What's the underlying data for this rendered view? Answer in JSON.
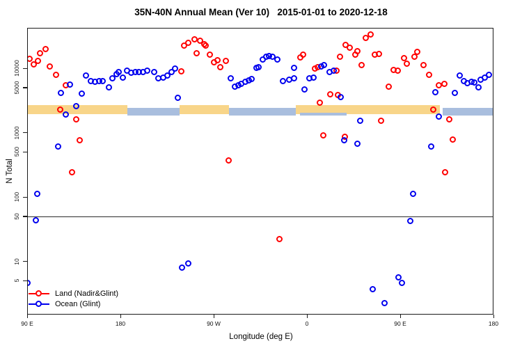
{
  "title": "35N-40N Annual Mean (Ver 10)   2015-01-01 to 2020-12-18",
  "legend": {
    "items": [
      {
        "label": "Land (Nadir&Glint)",
        "color": "#ff0000"
      },
      {
        "label": "Ocean (Glint)",
        "color": "#0000ee"
      }
    ]
  },
  "colors": {
    "land": "#ff0000",
    "ocean": "#0000ee",
    "land_band": "#f8d589",
    "ocean_band": "#a9bede",
    "axis": "#1a1a1a"
  },
  "chart_data": {
    "type": "scatter",
    "title": "35N-40N Annual Mean (Ver 10)   2015-01-01 to 2020-12-18",
    "xlabel": "Longitude (deg E)",
    "ylabel": "N Total",
    "x_axis": {
      "note": "axis runs eastward from 90E, wrapping past the dateline back to 180 (450 deg span)",
      "ticks_deg": [
        90,
        180,
        270,
        360,
        450,
        540
      ],
      "tick_labels": [
        "90 E",
        "180",
        "90 W",
        "0",
        "90 E",
        "180"
      ],
      "range_deg": [
        90,
        540
      ]
    },
    "y_axis": {
      "scale": "log",
      "ticks": [
        10000,
        5000,
        1000,
        500,
        100,
        50,
        10,
        5
      ],
      "range": [
        1.5,
        42000
      ],
      "grid": false
    },
    "reference_line_n": 50,
    "bands": [
      {
        "name": "land-mean-band",
        "color": "#f8d589",
        "n_range": [
          1950,
          2650
        ],
        "segments_deg": [
          [
            90,
            187
          ],
          [
            237,
            285
          ],
          [
            349,
            488
          ]
        ]
      },
      {
        "name": "ocean-mean-band",
        "color": "#a9bede",
        "n_range": [
          1820,
          2420
        ],
        "segments_deg": [
          [
            187,
            237
          ],
          [
            285,
            349
          ],
          [
            491,
            540
          ]
        ]
      },
      {
        "name": "ocean-mean-band-specks",
        "color": "#a9bede",
        "n_range": [
          1820,
          2050
        ],
        "segments_deg": [
          [
            353,
            398
          ]
        ]
      }
    ],
    "legend_position": "bottom-left",
    "series": [
      {
        "name": "Land (Nadir&Glint)",
        "color": "#ff0000",
        "points": [
          [
            93,
            13800
          ],
          [
            97,
            11300
          ],
          [
            101,
            12800
          ],
          [
            103,
            16900
          ],
          [
            108,
            19600
          ],
          [
            112,
            10500
          ],
          [
            118,
            7800
          ],
          [
            128,
            5400
          ],
          [
            122,
            2250
          ],
          [
            138,
            1580
          ],
          [
            141,
            750
          ],
          [
            134,
            240
          ],
          [
            239,
            8800
          ],
          [
            242,
            22200
          ],
          [
            246,
            24500
          ],
          [
            252,
            27700
          ],
          [
            254,
            16900
          ],
          [
            257,
            26400
          ],
          [
            261,
            23300
          ],
          [
            263,
            22200
          ],
          [
            267,
            16000
          ],
          [
            271,
            12200
          ],
          [
            274,
            13200
          ],
          [
            277,
            10300
          ],
          [
            282,
            12800
          ],
          [
            285,
            360
          ],
          [
            334,
            22
          ],
          [
            354,
            14500
          ],
          [
            357,
            16000
          ],
          [
            368,
            9800
          ],
          [
            371,
            10300
          ],
          [
            373,
            2900
          ],
          [
            376,
            890
          ],
          [
            383,
            3900
          ],
          [
            389,
            9050
          ],
          [
            390,
            3800
          ],
          [
            392,
            14900
          ],
          [
            397,
            850
          ],
          [
            398,
            22700
          ],
          [
            402,
            20600
          ],
          [
            407,
            16000
          ],
          [
            409,
            18200
          ],
          [
            413,
            11000
          ],
          [
            417,
            29200
          ],
          [
            422,
            33000
          ],
          [
            426,
            16000
          ],
          [
            430,
            16400
          ],
          [
            432,
            1510
          ],
          [
            439,
            5100
          ],
          [
            444,
            9300
          ],
          [
            448,
            9050
          ],
          [
            454,
            14200
          ],
          [
            457,
            11600
          ],
          [
            464,
            14900
          ],
          [
            467,
            17700
          ],
          [
            473,
            11000
          ],
          [
            478,
            7800
          ],
          [
            482,
            2250
          ],
          [
            488,
            5400
          ],
          [
            493,
            5600
          ],
          [
            494,
            240
          ],
          [
            498,
            1580
          ],
          [
            501,
            770
          ]
        ]
      },
      {
        "name": "Ocean (Glint)",
        "color": "#0000ee",
        "points": [
          [
            91,
            4.5
          ],
          [
            99,
            43
          ],
          [
            100,
            110
          ],
          [
            120,
            600
          ],
          [
            123,
            4100
          ],
          [
            128,
            1890
          ],
          [
            132,
            5500
          ],
          [
            138,
            2540
          ],
          [
            143,
            4000
          ],
          [
            147,
            7600
          ],
          [
            152,
            6240
          ],
          [
            156,
            6080
          ],
          [
            160,
            6240
          ],
          [
            163,
            6240
          ],
          [
            169,
            4980
          ],
          [
            173,
            6900
          ],
          [
            177,
            8000
          ],
          [
            179,
            8600
          ],
          [
            183,
            7060
          ],
          [
            187,
            9050
          ],
          [
            191,
            8400
          ],
          [
            195,
            8600
          ],
          [
            198,
            8600
          ],
          [
            202,
            8600
          ],
          [
            206,
            9050
          ],
          [
            213,
            8600
          ],
          [
            217,
            6900
          ],
          [
            222,
            7100
          ],
          [
            226,
            7600
          ],
          [
            230,
            8600
          ],
          [
            233,
            9750
          ],
          [
            236,
            3430
          ],
          [
            240,
            7.9
          ],
          [
            246,
            9.2
          ],
          [
            287,
            6900
          ],
          [
            291,
            5100
          ],
          [
            294,
            5400
          ],
          [
            297,
            5600
          ],
          [
            301,
            6100
          ],
          [
            304,
            6400
          ],
          [
            307,
            6700
          ],
          [
            312,
            10000
          ],
          [
            314,
            10300
          ],
          [
            318,
            13500
          ],
          [
            321,
            14900
          ],
          [
            324,
            15300
          ],
          [
            327,
            14900
          ],
          [
            332,
            13500
          ],
          [
            337,
            6200
          ],
          [
            343,
            6600
          ],
          [
            348,
            10000
          ],
          [
            348,
            6900
          ],
          [
            358,
            4600
          ],
          [
            363,
            6900
          ],
          [
            367,
            7100
          ],
          [
            374,
            10500
          ],
          [
            377,
            11000
          ],
          [
            382,
            8600
          ],
          [
            386,
            9050
          ],
          [
            393,
            3500
          ],
          [
            396,
            750
          ],
          [
            409,
            660
          ],
          [
            412,
            1510
          ],
          [
            424,
            3.6
          ],
          [
            435,
            2.2
          ],
          [
            449,
            5.6
          ],
          [
            452,
            4.5
          ],
          [
            460,
            42
          ],
          [
            463,
            110
          ],
          [
            480,
            600
          ],
          [
            484,
            4200
          ],
          [
            488,
            1750
          ],
          [
            503,
            4100
          ],
          [
            508,
            7600
          ],
          [
            512,
            6200
          ],
          [
            515,
            5800
          ],
          [
            519,
            6100
          ],
          [
            522,
            5900
          ],
          [
            526,
            5000
          ],
          [
            528,
            6600
          ],
          [
            532,
            7100
          ],
          [
            536,
            7800
          ]
        ]
      }
    ]
  }
}
